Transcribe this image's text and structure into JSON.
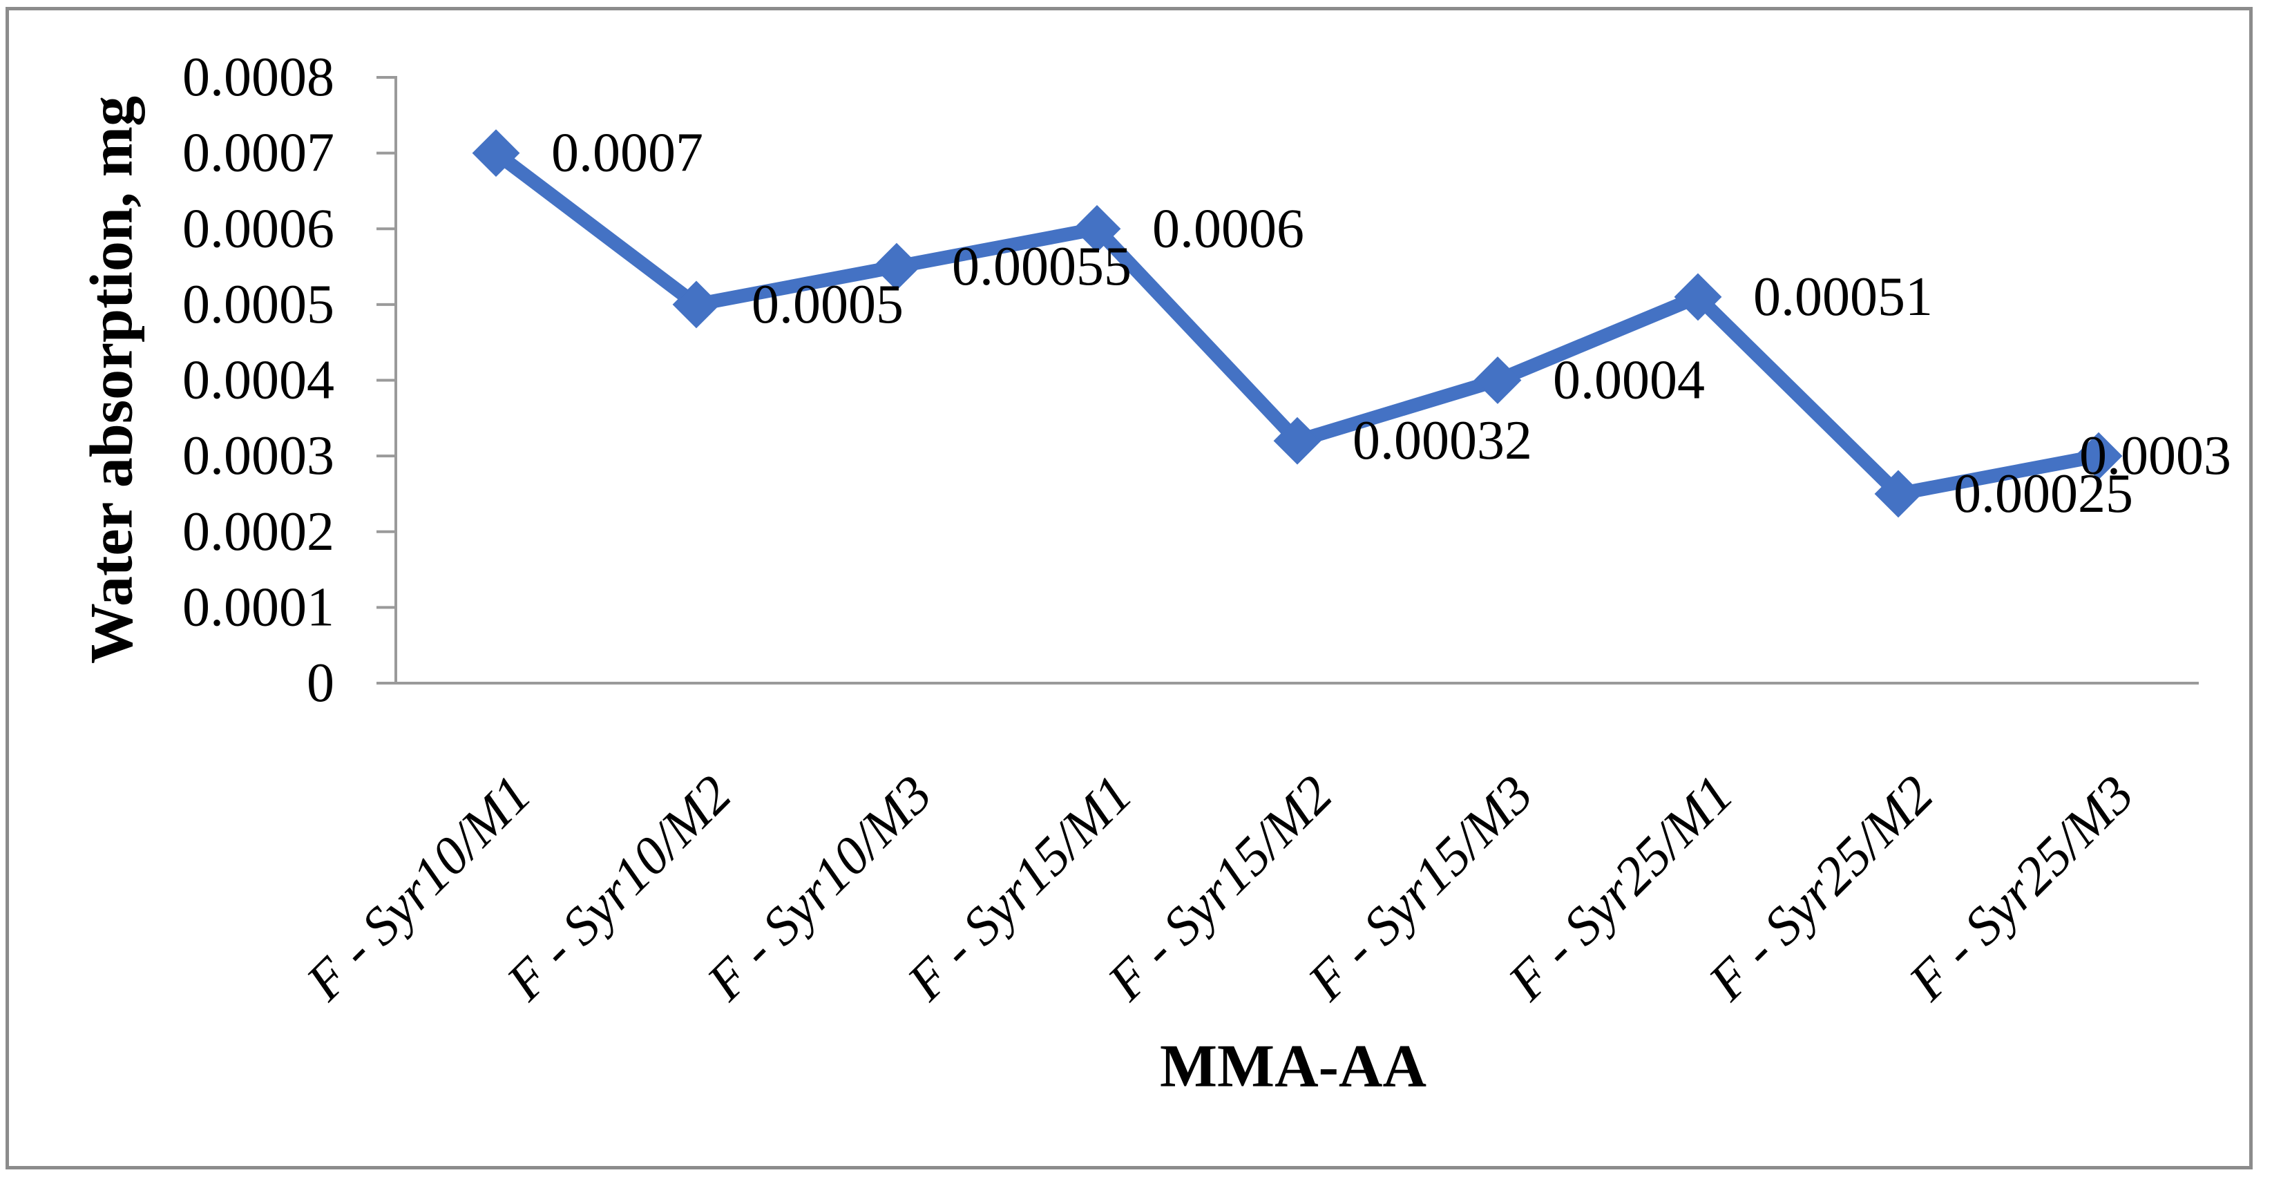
{
  "chart_data": {
    "type": "line",
    "title": "",
    "xlabel": "MMA-AA",
    "ylabel": "Water absorption, mg",
    "categories": [
      "F - Syr10/M1",
      "F - Syr10/M2",
      "F - Syr10/M3",
      "F - Syr15/M1",
      "F - Syr15/M2",
      "F - Syr15/M3",
      "F - Syr25/M1",
      "F - Syr25/M2",
      "F - Syr25/M3"
    ],
    "series": [
      {
        "name": "Water absorption",
        "values": [
          0.0007,
          0.0005,
          0.00055,
          0.0006,
          0.00032,
          0.0004,
          0.00051,
          0.00025,
          0.0003
        ],
        "data_labels": [
          "0.0007",
          "0.0005",
          "0.00055",
          "0.0006",
          "0.00032",
          "0.0004",
          "0.00051",
          "0.00025",
          "0.0003"
        ]
      }
    ],
    "y_ticks": [
      "0",
      "0.0001",
      "0.0002",
      "0.0003",
      "0.0004",
      "0.0005",
      "0.0006",
      "0.0007",
      "0.0008"
    ],
    "ylim": [
      0,
      0.0008
    ],
    "grid": "off",
    "legend": "none",
    "marker": "diamond",
    "colors": {
      "line": "#4472C4",
      "marker": "#4472C4",
      "axis": "#9A9A9A",
      "frame": "#8C8C8C",
      "text": "#000000"
    }
  }
}
